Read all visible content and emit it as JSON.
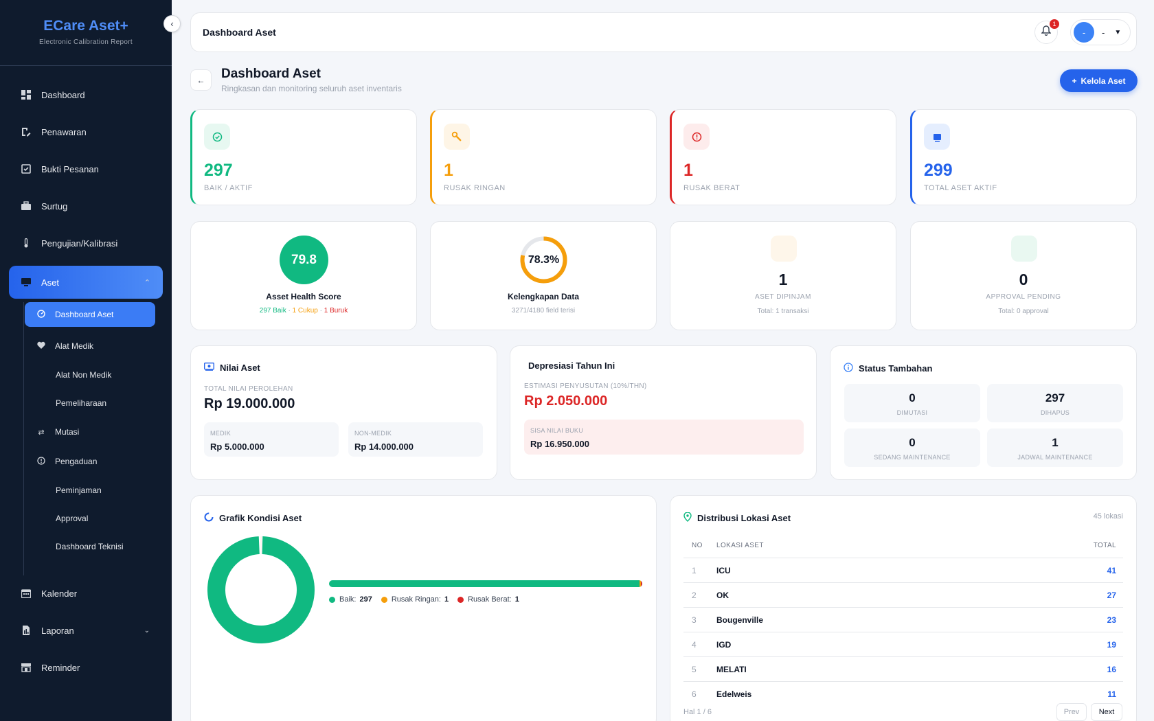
{
  "brand": {
    "title": "ECare Aset+",
    "subtitle": "Electronic Calibration Report"
  },
  "sidebar": {
    "items": [
      {
        "label": "Dashboard",
        "icon": "grid-icon"
      },
      {
        "label": "Penawaran",
        "icon": "document-edit-icon"
      },
      {
        "label": "Bukti Pesanan",
        "icon": "checkbox-icon"
      },
      {
        "label": "Surtug",
        "icon": "briefcase-icon"
      },
      {
        "label": "Pengujian/Kalibrasi",
        "icon": "thermometer-icon"
      },
      {
        "label": "Aset",
        "icon": "monitor-icon"
      },
      {
        "label": "Kalender",
        "icon": "calendar-icon"
      },
      {
        "label": "Laporan",
        "icon": "report-icon"
      },
      {
        "label": "Reminder",
        "icon": "store-icon"
      }
    ],
    "sub_items": [
      {
        "label": "Dashboard Aset",
        "icon": "gauge-icon"
      },
      {
        "label": "Alat Medik",
        "icon": "heartbeat-icon"
      },
      {
        "label": "Alat Non Medik"
      },
      {
        "label": "Pemeliharaan"
      },
      {
        "label": "Mutasi",
        "icon": "swap-icon"
      },
      {
        "label": "Pengaduan",
        "icon": "info-icon"
      },
      {
        "label": "Peminjaman"
      },
      {
        "label": "Approval"
      },
      {
        "label": "Dashboard Teknisi"
      }
    ]
  },
  "header": {
    "title": "Dashboard Aset",
    "notif_count": "1",
    "avatar_initial": "-",
    "user_name": "-"
  },
  "page": {
    "title": "Dashboard Aset",
    "subtitle": "Ringkasan dan monitoring seluruh aset inventaris",
    "action_label": "Kelola Aset"
  },
  "stats": [
    {
      "value": "297",
      "label": "BAIK / AKTIF",
      "color": "#10b981"
    },
    {
      "value": "1",
      "label": "RUSAK RINGAN",
      "color": "#f59e0b"
    },
    {
      "value": "1",
      "label": "RUSAK BERAT",
      "color": "#dc2626"
    },
    {
      "value": "299",
      "label": "TOTAL ASET AKTIF",
      "color": "#2563eb"
    }
  ],
  "health": {
    "score": "79.8",
    "title": "Asset Health Score",
    "baik": "297 Baik",
    "cukup": "1 Cukup",
    "buruk": "1 Buruk",
    "sep": " · "
  },
  "completeness": {
    "percent_text": "78.3%",
    "percent": 78.3,
    "title": "Kelengkapan Data",
    "sub": "3271/4180 field terisi"
  },
  "dipinjam": {
    "value": "1",
    "label": "ASET DIPINJAM",
    "foot": "Total: 1 transaksi"
  },
  "approval": {
    "value": "0",
    "label": "APPROVAL PENDING",
    "foot": "Total: 0 approval"
  },
  "nilai": {
    "title": "Nilai Aset",
    "total_label": "TOTAL NILAI PEROLEHAN",
    "total_value": "Rp 19.000.000",
    "medik_label": "MEDIK",
    "medik_value": "Rp 5.000.000",
    "nonmedik_label": "NON-MEDIK",
    "nonmedik_value": "Rp 14.000.000"
  },
  "depresiasi": {
    "title": "Depresiasi Tahun Ini",
    "est_label": "ESTIMASI PENYUSUTAN (10%/THN)",
    "est_value": "Rp 2.050.000",
    "sisa_label": "SISA NILAI BUKU",
    "sisa_value": "Rp 16.950.000"
  },
  "status_tambahan": {
    "title": "Status Tambahan",
    "tiles": [
      {
        "value": "0",
        "label": "DIMUTASI"
      },
      {
        "value": "297",
        "label": "DIHAPUS"
      },
      {
        "value": "0",
        "label": "SEDANG MAINTENANCE"
      },
      {
        "value": "1",
        "label": "JADWAL MAINTENANCE"
      }
    ]
  },
  "grafik": {
    "title": "Grafik Kondisi Aset",
    "legend": [
      {
        "label": "Baik:",
        "value": "297",
        "color": "#10b981"
      },
      {
        "label": "Rusak Ringan:",
        "value": "1",
        "color": "#f59e0b"
      },
      {
        "label": "Rusak Berat:",
        "value": "1",
        "color": "#dc2626"
      }
    ]
  },
  "chart_data": {
    "type": "pie",
    "categories": [
      "Baik",
      "Rusak Ringan",
      "Rusak Berat"
    ],
    "values": [
      297,
      1,
      1
    ],
    "colors": [
      "#10b981",
      "#f59e0b",
      "#dc2626"
    ]
  },
  "distribusi": {
    "title": "Distribusi Lokasi Aset",
    "count": "45 lokasi",
    "headers": {
      "no": "NO",
      "lokasi": "LOKASI ASET",
      "total": "TOTAL"
    },
    "rows": [
      {
        "no": "1",
        "lokasi": "ICU",
        "total": "41"
      },
      {
        "no": "2",
        "lokasi": "OK",
        "total": "27"
      },
      {
        "no": "3",
        "lokasi": "Bougenville",
        "total": "23"
      },
      {
        "no": "4",
        "lokasi": "IGD",
        "total": "19"
      },
      {
        "no": "5",
        "lokasi": "MELATI",
        "total": "16"
      },
      {
        "no": "6",
        "lokasi": "Edelweis",
        "total": "11"
      }
    ],
    "page_info": "Hal 1 / 6",
    "prev": "Prev",
    "next": "Next"
  }
}
